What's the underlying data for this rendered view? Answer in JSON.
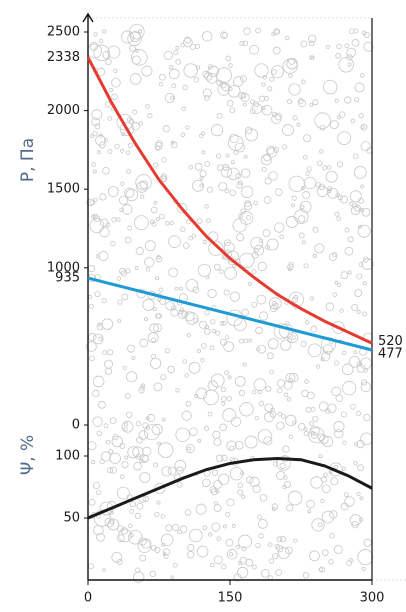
{
  "chart_data": {
    "type": "line",
    "y_label": "P, Па",
    "y2_label": "Ψ, %",
    "xlim": [
      0,
      300
    ],
    "xticks": [
      0,
      150,
      300
    ],
    "ylim": [
      0,
      2500
    ],
    "yticks": [
      0,
      1000,
      1500,
      2000,
      2500
    ],
    "y2lim": [
      0,
      100
    ],
    "y2ticks": [
      50,
      100
    ],
    "series": [
      {
        "color": "#e53b30",
        "x": [
          0,
          25,
          50,
          75,
          100,
          125,
          150,
          175,
          200,
          225,
          250,
          275,
          300
        ],
        "values": [
          2338,
          2050,
          1790,
          1560,
          1370,
          1200,
          1060,
          940,
          830,
          740,
          660,
          590,
          520
        ]
      },
      {
        "color": "#1e9ad6",
        "x": [
          0,
          300
        ],
        "values": [
          935,
          477
        ]
      },
      {
        "color": "#1a1a1a",
        "axis": "y2",
        "x": [
          0,
          25,
          50,
          75,
          100,
          125,
          150,
          175,
          200,
          225,
          250,
          275,
          300
        ],
        "values": [
          50,
          58,
          66,
          74,
          82,
          89,
          94,
          97,
          98,
          97,
          92,
          84,
          74
        ]
      }
    ]
  }
}
